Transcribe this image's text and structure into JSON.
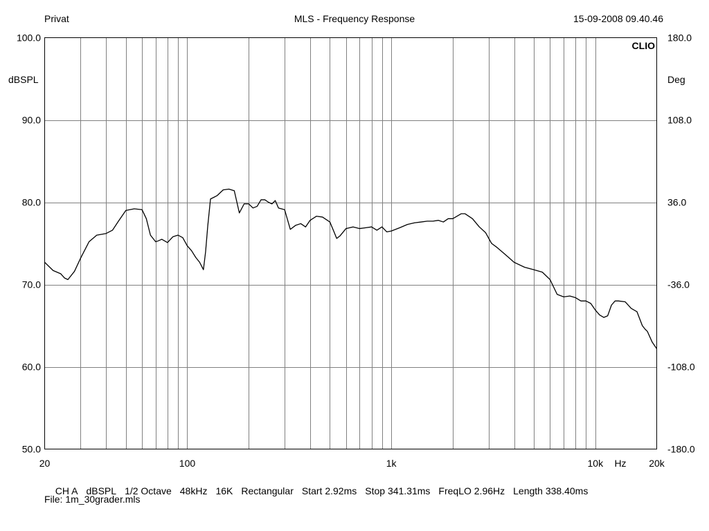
{
  "header": {
    "left": "Privat",
    "title": "MLS - Frequency Response",
    "datetime": "15-09-2008 09.40.46",
    "brand": "CLIO"
  },
  "chart_data": {
    "type": "line",
    "x_scale": "log",
    "xlim": [
      20,
      20000
    ],
    "ylim": [
      50,
      100
    ],
    "y2lim": [
      -180,
      180
    ],
    "ylabel": "dBSPL",
    "y2label": "Deg",
    "xlabel": "Hz",
    "grid": true,
    "y_ticks": [
      "100.0",
      "90.0",
      "80.0",
      "70.0",
      "60.0",
      "50.0"
    ],
    "y2_ticks": [
      "180.0",
      "108.0",
      "36.0",
      "-36.0",
      "-108.0",
      "-180.0"
    ],
    "x_tick_labels": [
      {
        "x": 20,
        "label": "20"
      },
      {
        "x": 100,
        "label": "100"
      },
      {
        "x": 1000,
        "label": "1k"
      },
      {
        "x": 10000,
        "label": "10k"
      },
      {
        "x": 20000,
        "label": "20k"
      }
    ],
    "series": [
      {
        "color": "#000000",
        "x": [
          20,
          22,
          24,
          25,
          26,
          28,
          30,
          33,
          36,
          40,
          43,
          46,
          50,
          55,
          60,
          63,
          66,
          70,
          72,
          75,
          80,
          85,
          90,
          95,
          100,
          105,
          110,
          115,
          120,
          123,
          126,
          130,
          135,
          140,
          150,
          160,
          170,
          180,
          190,
          200,
          210,
          220,
          230,
          240,
          250,
          260,
          270,
          280,
          300,
          320,
          340,
          360,
          380,
          400,
          430,
          460,
          500,
          520,
          540,
          560,
          600,
          650,
          700,
          750,
          800,
          850,
          900,
          950,
          1000,
          1100,
          1200,
          1300,
          1400,
          1500,
          1600,
          1700,
          1800,
          1900,
          2000,
          2100,
          2200,
          2300,
          2500,
          2700,
          2900,
          3100,
          3300,
          3600,
          4000,
          4500,
          5000,
          5500,
          6000,
          6500,
          7000,
          7500,
          8000,
          8500,
          9000,
          9500,
          10000,
          10500,
          11000,
          11500,
          12000,
          12500,
          13000,
          14000,
          15000,
          16000,
          17000,
          17500,
          18000,
          19000,
          20000
        ],
        "y": [
          72.7,
          71.7,
          71.3,
          70.8,
          70.6,
          71.6,
          73.2,
          75.2,
          76.0,
          76.2,
          76.6,
          77.7,
          79.0,
          79.2,
          79.1,
          78.0,
          76.0,
          75.2,
          75.3,
          75.5,
          75.1,
          75.8,
          76.0,
          75.7,
          74.7,
          74.1,
          73.3,
          72.7,
          71.8,
          74.0,
          77.1,
          80.4,
          80.6,
          80.8,
          81.5,
          81.6,
          81.4,
          78.7,
          79.8,
          79.8,
          79.3,
          79.5,
          80.3,
          80.3,
          80.0,
          79.8,
          80.2,
          79.3,
          79.1,
          76.7,
          77.2,
          77.4,
          77.0,
          77.8,
          78.3,
          78.2,
          77.6,
          76.6,
          75.6,
          75.9,
          76.8,
          77.0,
          76.8,
          76.9,
          77.0,
          76.6,
          77.0,
          76.4,
          76.5,
          76.9,
          77.3,
          77.5,
          77.6,
          77.7,
          77.7,
          77.8,
          77.6,
          78.0,
          78.0,
          78.3,
          78.6,
          78.6,
          78.0,
          77.0,
          76.3,
          75.0,
          74.5,
          73.7,
          72.7,
          72.1,
          71.8,
          71.5,
          70.6,
          68.8,
          68.5,
          68.6,
          68.4,
          68.0,
          68.0,
          67.7,
          66.9,
          66.3,
          66.0,
          66.2,
          67.5,
          68.0,
          68.0,
          67.9,
          67.1,
          66.7,
          65.0,
          64.6,
          64.3,
          63.0,
          62.2
        ]
      }
    ]
  },
  "footer": {
    "channel": "CH A",
    "unit": "dBSPL",
    "smoothing": "1/2 Octave",
    "sample_rate": "48kHz",
    "size": "16K",
    "window": "Rectangular",
    "start": "Start 2.92ms",
    "stop": "Stop 341.31ms",
    "freqlo": "FreqLO 2.96Hz",
    "length": "Length 338.40ms",
    "file": "File: 1m_30grader.mls"
  }
}
